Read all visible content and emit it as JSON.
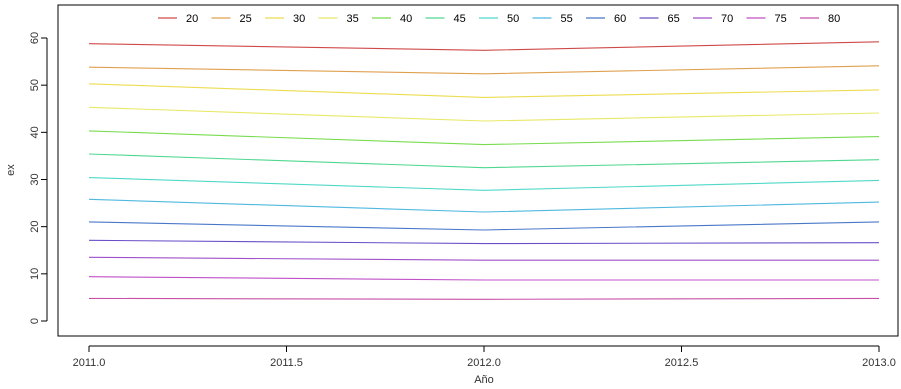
{
  "chart_data": {
    "type": "line",
    "title": "",
    "xlabel": "Año",
    "ylabel": "ex",
    "xlim": [
      2011.0,
      2013.0
    ],
    "ylim": [
      0,
      65
    ],
    "x_ticks": [
      2011.0,
      2011.5,
      2012.0,
      2012.5,
      2013.0
    ],
    "x_tick_labels": [
      "2011.0",
      "2011.5",
      "2012.0",
      "2012.5",
      "2013.0"
    ],
    "y_ticks": [
      0,
      10,
      20,
      30,
      40,
      50,
      60
    ],
    "y_tick_labels": [
      "0",
      "10",
      "20",
      "30",
      "40",
      "50",
      "60"
    ],
    "grid": false,
    "legend_position": "top",
    "x": [
      2011.0,
      2012.0,
      2013.0
    ],
    "series": [
      {
        "name": "20",
        "color": "#d04a4a",
        "values": [
          58.8,
          57.4,
          59.2
        ]
      },
      {
        "name": "25",
        "color": "#e0a050",
        "values": [
          53.8,
          52.4,
          54.1
        ]
      },
      {
        "name": "30",
        "color": "#ecdc50",
        "values": [
          50.3,
          47.4,
          49.0
        ]
      },
      {
        "name": "35",
        "color": "#e8e868",
        "values": [
          45.3,
          42.4,
          44.1
        ]
      },
      {
        "name": "40",
        "color": "#78dc50",
        "values": [
          40.3,
          37.4,
          39.1
        ]
      },
      {
        "name": "45",
        "color": "#50d890",
        "values": [
          35.4,
          32.5,
          34.2
        ]
      },
      {
        "name": "50",
        "color": "#50d8c8",
        "values": [
          30.4,
          27.7,
          29.8
        ]
      },
      {
        "name": "55",
        "color": "#50b8e0",
        "values": [
          25.8,
          23.1,
          25.2
        ]
      },
      {
        "name": "60",
        "color": "#4a78c8",
        "values": [
          21.0,
          19.3,
          21.0
        ]
      },
      {
        "name": "65",
        "color": "#6a50c8",
        "values": [
          17.1,
          16.4,
          16.6
        ]
      },
      {
        "name": "70",
        "color": "#a050c8",
        "values": [
          13.5,
          12.9,
          12.9
        ]
      },
      {
        "name": "75",
        "color": "#c050c8",
        "values": [
          9.4,
          8.7,
          8.7
        ]
      },
      {
        "name": "80",
        "color": "#c850a8",
        "values": [
          4.8,
          4.6,
          4.8
        ]
      }
    ]
  }
}
